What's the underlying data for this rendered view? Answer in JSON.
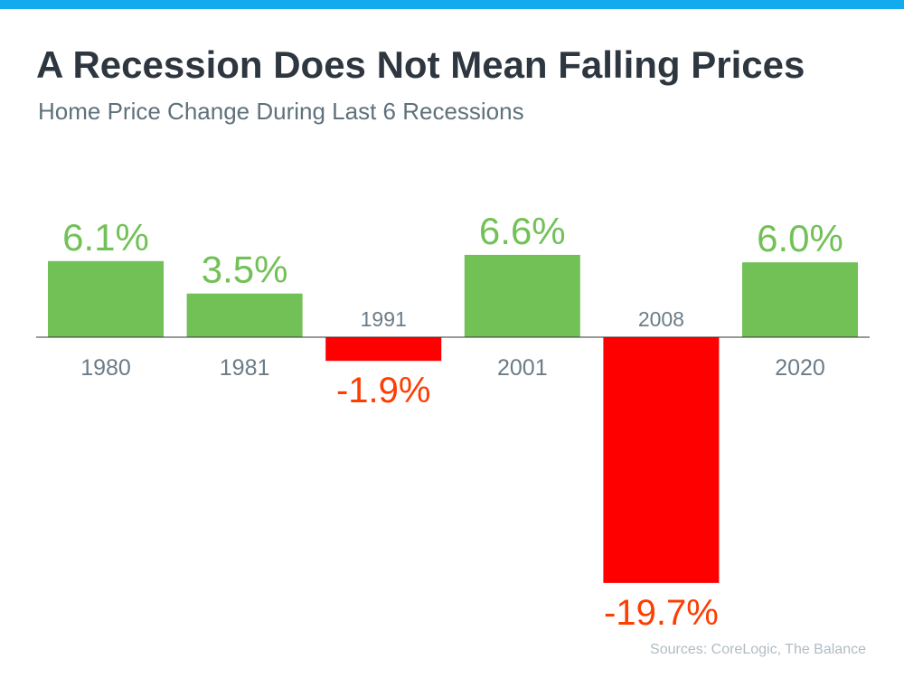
{
  "title": "A Recession Does Not Mean Falling Prices",
  "subtitle": "Home Price Change During Last 6 Recessions",
  "source": "Sources: CoreLogic, The Balance",
  "colors": {
    "top_bar": "#14aaee",
    "positive": "#72c157",
    "negative": "#ff0000",
    "positive_label": "#72c157",
    "negative_label": "#ff3d00",
    "year_label": "#6b7c88"
  },
  "chart_data": {
    "type": "bar",
    "title": "A Recession Does Not Mean Falling Prices",
    "subtitle": "Home Price Change During Last 6 Recessions",
    "categories": [
      "1980",
      "1981",
      "1991",
      "2001",
      "2008",
      "2020"
    ],
    "values": [
      6.1,
      3.5,
      -1.9,
      6.6,
      -19.7,
      6.0
    ],
    "labels": [
      "6.1%",
      "3.5%",
      "-1.9%",
      "6.6%",
      "-19.7%",
      "6.0%"
    ],
    "unit": "%",
    "xlabel": "",
    "ylabel": "",
    "grid": false,
    "legend": "none"
  }
}
